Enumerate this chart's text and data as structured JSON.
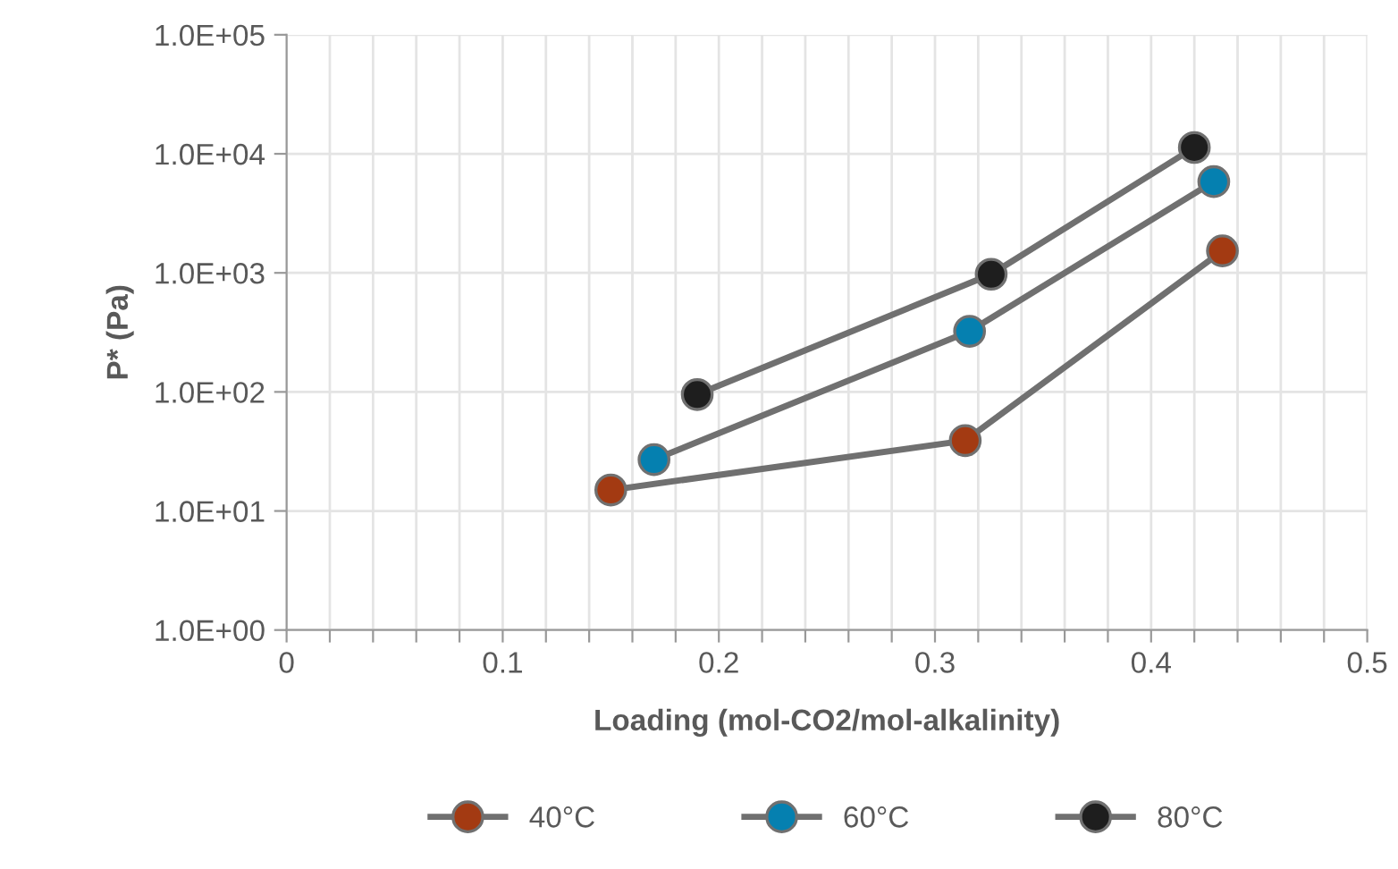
{
  "chart_data": {
    "type": "line",
    "xlabel": "Loading (mol-CO2/mol-alkalinity)",
    "ylabel": "P* (Pa)",
    "log": "y",
    "grid": true,
    "legend": "bottom",
    "marker": "circle",
    "line_style": "solid",
    "xlim": [
      0,
      0.5
    ],
    "ylim": [
      1,
      100000
    ],
    "xticks": [
      0,
      {
        "value": 0.02,
        "label": null
      },
      {
        "value": 0.04,
        "label": null
      },
      {
        "value": 0.06,
        "label": null
      },
      {
        "value": 0.08,
        "label": null
      },
      0.1,
      {
        "value": 0.12,
        "label": null
      },
      {
        "value": 0.14,
        "label": null
      },
      {
        "value": 0.16,
        "label": null
      },
      {
        "value": 0.18,
        "label": null
      },
      0.2,
      {
        "value": 0.22,
        "label": null
      },
      {
        "value": 0.24,
        "label": null
      },
      {
        "value": 0.26,
        "label": null
      },
      {
        "value": 0.28,
        "label": null
      },
      0.3,
      {
        "value": 0.32,
        "label": null
      },
      {
        "value": 0.34,
        "label": null
      },
      {
        "value": 0.36,
        "label": null
      },
      {
        "value": 0.38,
        "label": null
      },
      0.4,
      {
        "value": 0.42,
        "label": null
      },
      {
        "value": 0.44,
        "label": null
      },
      {
        "value": 0.46,
        "label": null
      },
      {
        "value": 0.48,
        "label": null
      },
      0.5
    ],
    "yticks": [
      {
        "value": 1,
        "label": "1.0E+00"
      },
      {
        "value": 10,
        "label": "1.0E+01"
      },
      {
        "value": 100,
        "label": "1.0E+02"
      },
      {
        "value": 1000,
        "label": "1.0E+03"
      },
      {
        "value": 10000,
        "label": "1.0E+04"
      },
      {
        "value": 100000,
        "label": "1.0E+05"
      }
    ],
    "series": [
      {
        "name": "40°C",
        "color": "#a33a12",
        "x": [
          0.15,
          0.314,
          0.433
        ],
        "values": [
          15,
          39,
          1530
        ]
      },
      {
        "name": "60°C",
        "color": "#0580b0",
        "x": [
          0.17,
          0.316,
          0.429
        ],
        "values": [
          27,
          323,
          5840
        ]
      },
      {
        "name": "80°C",
        "color": "#1e1e1e",
        "x": [
          0.19,
          0.326,
          0.42
        ],
        "values": [
          95,
          973,
          11300
        ]
      }
    ]
  }
}
